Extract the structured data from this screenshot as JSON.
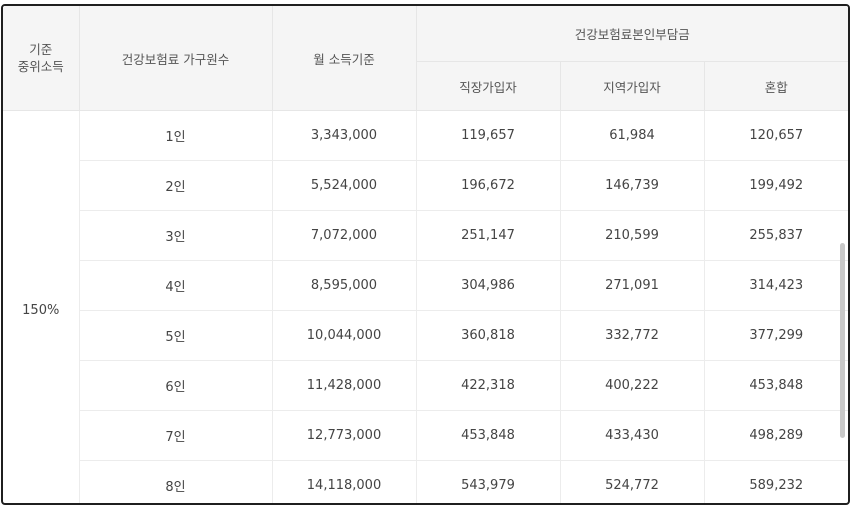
{
  "header": {
    "col1_line1": "기준",
    "col1_line2": "중위소득",
    "col2": "건강보험료 가구원수",
    "col3": "월 소득기준",
    "group": "건강보험료본인부담금",
    "sub": [
      "직장가입자",
      "지역가입자",
      "혼합"
    ]
  },
  "criterion": "150%",
  "rows": [
    {
      "household": "1인",
      "income": "3,343,000",
      "workplace": "119,657",
      "regional": "61,984",
      "mixed": "120,657"
    },
    {
      "household": "2인",
      "income": "5,524,000",
      "workplace": "196,672",
      "regional": "146,739",
      "mixed": "199,492"
    },
    {
      "household": "3인",
      "income": "7,072,000",
      "workplace": "251,147",
      "regional": "210,599",
      "mixed": "255,837"
    },
    {
      "household": "4인",
      "income": "8,595,000",
      "workplace": "304,986",
      "regional": "271,091",
      "mixed": "314,423"
    },
    {
      "household": "5인",
      "income": "10,044,000",
      "workplace": "360,818",
      "regional": "332,772",
      "mixed": "377,299"
    },
    {
      "household": "6인",
      "income": "11,428,000",
      "workplace": "422,318",
      "regional": "400,222",
      "mixed": "453,848"
    },
    {
      "household": "7인",
      "income": "12,773,000",
      "workplace": "453,848",
      "regional": "433,430",
      "mixed": "498,289"
    },
    {
      "household": "8인",
      "income": "14,118,000",
      "workplace": "543,979",
      "regional": "524,772",
      "mixed": "589,232"
    }
  ]
}
